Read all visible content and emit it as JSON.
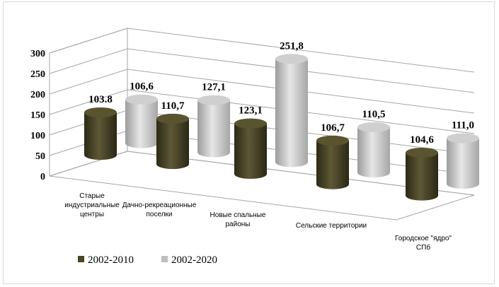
{
  "chart_data": {
    "type": "bar",
    "style": "3d-cylinder",
    "categories": [
      [
        "Старые",
        "индустриальные",
        "центры"
      ],
      [
        "Дачно-рекреационные",
        "поселки"
      ],
      [
        "Новые спальные",
        "районы"
      ],
      [
        "Сельские территории"
      ],
      [
        "Городское \"ядро\"",
        "СПб"
      ]
    ],
    "series": [
      {
        "name": "2002-2010",
        "values": [
          103.8,
          110.7,
          123.1,
          106.7,
          104.6
        ],
        "labels": [
          "103.8",
          "110,7",
          "123,1",
          "106,7",
          "104,6"
        ],
        "color": "#4a4528"
      },
      {
        "name": "2002-2020",
        "values": [
          106.6,
          127.1,
          251.8,
          110.5,
          111.0
        ],
        "labels": [
          "106,6",
          "127,1",
          "251,8",
          "110,5",
          "111,0"
        ],
        "color": "#bfbfbf"
      }
    ],
    "yticks": [
      0,
      50,
      100,
      150,
      200,
      250,
      300
    ],
    "ylim": [
      0,
      300
    ],
    "grid": true,
    "legend": "bottom-left"
  }
}
